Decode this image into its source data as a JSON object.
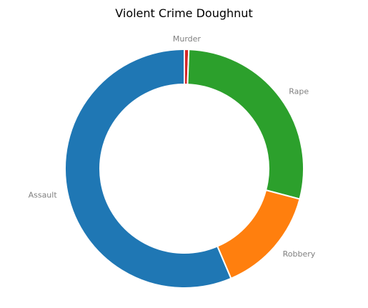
{
  "chart_data": {
    "type": "pie",
    "title": "Violent Crime Doughnut",
    "categories": [
      "Murder",
      "Rape",
      "Robbery",
      "Assault"
    ],
    "values": [
      0.6,
      28.5,
      14.5,
      56.4
    ],
    "colors": [
      "#d62728",
      "#2ca02c",
      "#ff7f0e",
      "#1f77b4"
    ],
    "legend": "none"
  }
}
